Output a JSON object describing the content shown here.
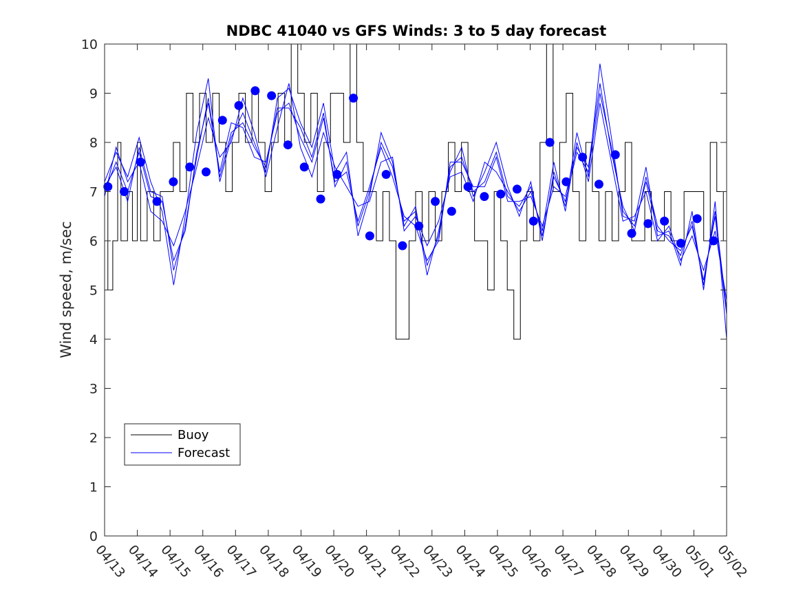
{
  "chart_data": {
    "type": "line",
    "title": "NDBC 41040 vs GFS Winds: 3 to 5 day forecast",
    "xlabel": "",
    "ylabel": "Wind speed, m/sec",
    "x_ticks": [
      "04/13",
      "04/14",
      "04/15",
      "04/16",
      "04/17",
      "04/18",
      "04/19",
      "04/20",
      "04/21",
      "04/22",
      "04/23",
      "04/24",
      "04/25",
      "04/26",
      "04/27",
      "04/28",
      "04/29",
      "04/30",
      "05/01",
      "05/02"
    ],
    "y_ticks": [
      "0",
      "1",
      "2",
      "3",
      "4",
      "5",
      "6",
      "7",
      "8",
      "9",
      "10"
    ],
    "xlim": [
      0,
      19
    ],
    "ylim": [
      0,
      10
    ],
    "grid": false,
    "legend_position": "bottom-left",
    "colors": {
      "buoy": "#000000",
      "forecast": "#0000ff",
      "markers": "#0000ff"
    },
    "series": [
      {
        "name": "Buoy",
        "x": [
          0,
          0.1,
          0.25,
          0.4,
          0.5,
          0.7,
          0.85,
          1,
          1.1,
          1.3,
          1.5,
          1.7,
          1.9,
          2.1,
          2.3,
          2.5,
          2.7,
          2.9,
          3.1,
          3.3,
          3.5,
          3.7,
          3.9,
          4.1,
          4.3,
          4.5,
          4.7,
          4.9,
          5.1,
          5.3,
          5.5,
          5.7,
          5.9,
          6.1,
          6.3,
          6.5,
          6.7,
          6.9,
          7.1,
          7.3,
          7.5,
          7.7,
          7.9,
          8.1,
          8.3,
          8.5,
          8.7,
          8.9,
          9.1,
          9.3,
          9.5,
          9.7,
          9.9,
          10.1,
          10.3,
          10.5,
          10.7,
          10.9,
          11.1,
          11.3,
          11.5,
          11.7,
          11.9,
          12.1,
          12.3,
          12.5,
          12.7,
          12.9,
          13.1,
          13.3,
          13.5,
          13.7,
          13.9,
          14.1,
          14.3,
          14.5,
          14.7,
          14.9,
          15.1,
          15.3,
          15.5,
          15.7,
          15.9,
          16.1,
          16.3,
          16.5,
          16.7,
          16.9,
          17.1,
          17.3,
          17.5,
          17.7,
          17.9,
          18.1,
          18.3,
          18.5,
          18.7,
          18.9,
          19
        ],
        "values": [
          7,
          5,
          6,
          8,
          6,
          7,
          6,
          8,
          6,
          7,
          6,
          7,
          7,
          8,
          7,
          9,
          8,
          9,
          8,
          9,
          8,
          7,
          8,
          9,
          8,
          9,
          8,
          7,
          8,
          9,
          8,
          10,
          9,
          8,
          9,
          7,
          8,
          9,
          9,
          8,
          10,
          8,
          7,
          7,
          6,
          7,
          6,
          4,
          4,
          6,
          7,
          6,
          7,
          6,
          7,
          8,
          7,
          8,
          7,
          6,
          6,
          5,
          7,
          6,
          5,
          4,
          6,
          7,
          6,
          8,
          10,
          7,
          8,
          9,
          7,
          6,
          8,
          7,
          6,
          7,
          6,
          7,
          8,
          6,
          6,
          7,
          6,
          6,
          7,
          6,
          6,
          7,
          7,
          7,
          6,
          8,
          7,
          6,
          6
        ]
      },
      {
        "name": "Forecast",
        "runs": [
          [
            7.2,
            7.8,
            7.3,
            8.1,
            7.2,
            6.6,
            5.1,
            6.5,
            8.2,
            9.3,
            7.2,
            8.1,
            8.6,
            8.0,
            7.4,
            8.9,
            9.1,
            8.4,
            7.9,
            8.8,
            7.4,
            7.8,
            6.1,
            6.9,
            8.2,
            7.6,
            6.3,
            6.7,
            5.3,
            6.2,
            7.4,
            7.9,
            6.9,
            7.4,
            8.0,
            7.1,
            6.5,
            7.2,
            6.0,
            7.4,
            6.7,
            8.2,
            7.3,
            9.6,
            8.1,
            6.5,
            6.4,
            7.5,
            6.1,
            6.2,
            5.5,
            6.6,
            5.0,
            6.8,
            4.0
          ],
          [
            7.0,
            7.6,
            7.0,
            7.8,
            6.9,
            6.8,
            5.6,
            6.2,
            7.8,
            8.8,
            7.4,
            8.4,
            8.3,
            7.7,
            7.6,
            8.6,
            8.8,
            8.1,
            7.6,
            8.5,
            7.2,
            7.4,
            6.4,
            7.1,
            7.9,
            7.3,
            6.5,
            6.3,
            5.6,
            6.0,
            7.6,
            7.6,
            7.1,
            7.1,
            7.7,
            6.8,
            6.8,
            6.9,
            6.3,
            7.1,
            6.9,
            7.9,
            7.5,
            9.2,
            7.8,
            6.7,
            6.2,
            7.3,
            6.3,
            6.0,
            5.8,
            6.3,
            5.2,
            6.5,
            4.5
          ],
          [
            6.9,
            7.9,
            7.2,
            7.6,
            6.6,
            6.4,
            5.9,
            6.6,
            7.5,
            8.5,
            7.7,
            8.0,
            8.9,
            8.2,
            7.3,
            8.3,
            9.2,
            7.9,
            7.3,
            8.2,
            7.5,
            7.1,
            6.7,
            6.8,
            7.6,
            7.7,
            6.2,
            6.5,
            5.9,
            6.4,
            7.3,
            7.4,
            6.8,
            7.6,
            7.4,
            7.0,
            6.6,
            7.0,
            6.2,
            7.6,
            6.6,
            8.0,
            7.2,
            8.8,
            7.6,
            6.4,
            6.5,
            7.0,
            6.0,
            6.3,
            5.6,
            6.1,
            5.4,
            6.2,
            4.8
          ],
          [
            7.1,
            7.5,
            6.8,
            7.9,
            7.0,
            6.9,
            5.4,
            6.3,
            7.7,
            8.9,
            7.3,
            8.2,
            8.4,
            7.9,
            7.5,
            8.7,
            8.7,
            8.3,
            7.7,
            8.6,
            7.1,
            7.6,
            6.3,
            7.0,
            8.0,
            7.5,
            6.4,
            6.6,
            5.5,
            6.1,
            7.5,
            7.7,
            7.0,
            7.2,
            7.8,
            6.9,
            6.7,
            7.1,
            6.1,
            7.3,
            6.8,
            7.8,
            7.4,
            9.0,
            7.9,
            6.6,
            6.3,
            7.2,
            6.2,
            6.1,
            5.7,
            6.4,
            5.1,
            6.6,
            4.6
          ]
        ]
      }
    ],
    "markers": {
      "x": [
        0.1,
        0.6,
        1.1,
        1.6,
        2.1,
        2.6,
        3.1,
        3.6,
        4.1,
        4.6,
        5.1,
        5.6,
        6.1,
        6.6,
        7.1,
        7.6,
        8.1,
        8.6,
        9.1,
        9.6,
        10.1,
        10.6,
        11.1,
        11.6,
        12.1,
        12.6,
        13.1,
        13.6,
        14.1,
        14.6,
        15.1,
        15.6,
        16.1,
        16.6,
        17.1,
        17.6,
        18.1,
        18.6
      ],
      "values": [
        7.1,
        7.0,
        7.6,
        6.8,
        7.2,
        7.5,
        7.4,
        8.45,
        8.75,
        9.05,
        8.95,
        7.95,
        7.5,
        6.85,
        7.35,
        8.9,
        6.1,
        7.35,
        5.9,
        6.3,
        6.8,
        6.6,
        7.1,
        6.9,
        6.95,
        7.05,
        6.4,
        8.0,
        7.2,
        7.7,
        7.15,
        7.75,
        6.15,
        6.35,
        6.4,
        5.95,
        6.45,
        6.0
      ]
    }
  }
}
